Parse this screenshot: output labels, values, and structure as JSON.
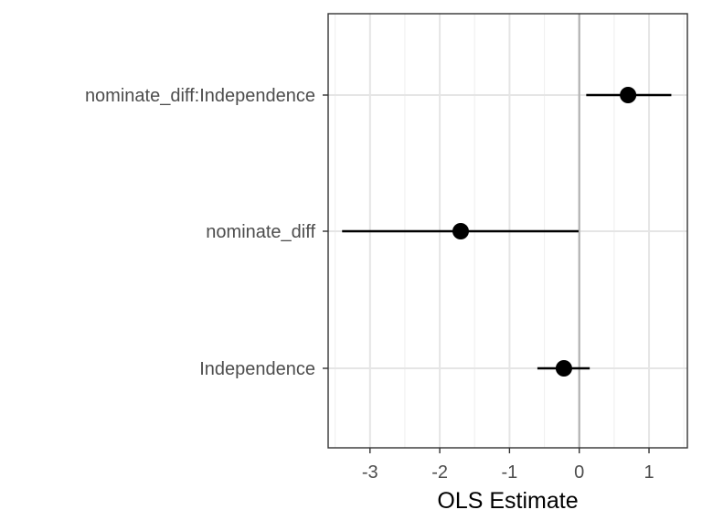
{
  "chart_data": {
    "type": "scatter",
    "subtype": "coefficient-plot",
    "title": "",
    "xlabel": "OLS Estimate",
    "ylabel": "",
    "xlim": [
      -3.6,
      1.55
    ],
    "x_ticks": [
      -3,
      -2,
      -1,
      0,
      1
    ],
    "x_tick_labels": [
      "-3",
      "-2",
      "-1",
      "0",
      "1"
    ],
    "reference_line_x": 0,
    "grid": true,
    "legend": "none",
    "terms": [
      {
        "label": "nominate_diff:Independence",
        "estimate": 0.7,
        "ci_low": 0.1,
        "ci_high": 1.32
      },
      {
        "label": "nominate_diff",
        "estimate": -1.7,
        "ci_low": -3.4,
        "ci_high": -0.01
      },
      {
        "label": "Independence",
        "estimate": -0.22,
        "ci_low": -0.6,
        "ci_high": 0.15
      }
    ],
    "colors": {
      "point": "#000000",
      "errorbar": "#000000",
      "reference_line": "#b3b3b3",
      "grid_major": "#e5e5e5",
      "grid_minor": "#f0f0f0",
      "panel_border": "#333333",
      "tick_text": "#4d4d4d",
      "axis_title": "#000000"
    }
  }
}
